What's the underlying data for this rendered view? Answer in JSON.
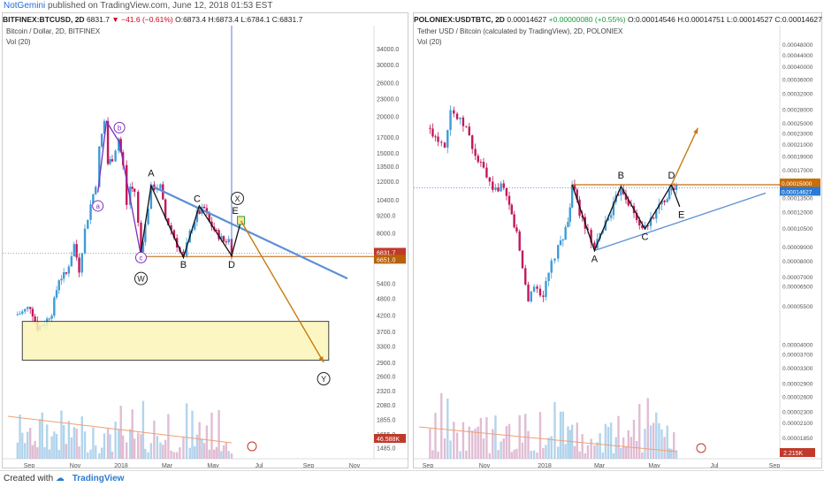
{
  "header": {
    "author": "NotGemini",
    "published": "published on TradingView.com, June 12, 2018 01:53 EST"
  },
  "footer": {
    "created_with": "Created with",
    "brand": "TradingView"
  },
  "chart_data": [
    {
      "type": "candlestick",
      "symbol": "BITFINEX:BTCUSD, 2D",
      "quote": {
        "last": "6831.7",
        "change": "−41.6 (−0.61%)",
        "open": "O:6873.4",
        "high": "H:6873.4",
        "low": "L:6784.1",
        "close": "C:6831.7"
      },
      "title": "Bitcoin / Dollar, 2D, BITFINEX",
      "volume_label": "Vol (20)",
      "y_scale": "log",
      "y_ticks": [
        "34000.0",
        "30000.0",
        "26000.0",
        "23000.0",
        "20000.0",
        "17000.0",
        "15000.0",
        "13500.0",
        "12000.0",
        "10400.0",
        "9200.0",
        "8000.0",
        "6800.0",
        "5400.0",
        "4800.0",
        "4200.0",
        "3700.0",
        "3300.0",
        "2900.0",
        "2600.0",
        "2320.0",
        "2080.0",
        "1855.0",
        "1655.0",
        "1485.0"
      ],
      "price_badges": [
        {
          "value": "6831.7",
          "color": "#c0392b"
        },
        {
          "value": "6651.0",
          "color": "#b8600a"
        }
      ],
      "volume_badge": {
        "value": "46.588K",
        "color": "#c0392b"
      },
      "x_ticks": [
        "Sep",
        "Nov",
        "2018",
        "Mar",
        "May",
        "Jul",
        "Sep",
        "Nov"
      ],
      "close_path": [
        {
          "date": "2017-08-15",
          "close": 4200
        },
        {
          "date": "2017-08-25",
          "close": 4300
        },
        {
          "date": "2017-09-05",
          "close": 4500
        },
        {
          "date": "2017-09-15",
          "close": 3800
        },
        {
          "date": "2017-09-25",
          "close": 3950
        },
        {
          "date": "2017-10-05",
          "close": 4300
        },
        {
          "date": "2017-10-15",
          "close": 5600
        },
        {
          "date": "2017-10-25",
          "close": 5800
        },
        {
          "date": "2017-11-05",
          "close": 7300
        },
        {
          "date": "2017-11-12",
          "close": 6000
        },
        {
          "date": "2017-11-20",
          "close": 8200
        },
        {
          "date": "2017-11-28",
          "close": 10000
        },
        {
          "date": "2017-12-05",
          "close": 11800
        },
        {
          "date": "2017-12-10",
          "close": 15500
        },
        {
          "date": "2017-12-17",
          "close": 19300
        },
        {
          "date": "2017-12-22",
          "close": 13800
        },
        {
          "date": "2017-12-28",
          "close": 14400
        },
        {
          "date": "2018-01-06",
          "close": 16800
        },
        {
          "date": "2018-01-12",
          "close": 13500
        },
        {
          "date": "2018-01-17",
          "close": 10000
        },
        {
          "date": "2018-01-22",
          "close": 11500
        },
        {
          "date": "2018-01-28",
          "close": 11100
        },
        {
          "date": "2018-02-02",
          "close": 8600
        },
        {
          "date": "2018-02-06",
          "close": 6900
        },
        {
          "date": "2018-02-12",
          "close": 8500
        },
        {
          "date": "2018-02-20",
          "close": 11400
        },
        {
          "date": "2018-03-05",
          "close": 11500
        },
        {
          "date": "2018-03-12",
          "close": 9000
        },
        {
          "date": "2018-03-20",
          "close": 8200
        },
        {
          "date": "2018-04-01",
          "close": 6900
        },
        {
          "date": "2018-04-06",
          "close": 6600
        },
        {
          "date": "2018-04-15",
          "close": 8000
        },
        {
          "date": "2018-04-25",
          "close": 9300
        },
        {
          "date": "2018-05-05",
          "close": 9700
        },
        {
          "date": "2018-05-12",
          "close": 8700
        },
        {
          "date": "2018-05-22",
          "close": 8000
        },
        {
          "date": "2018-06-01",
          "close": 7500
        },
        {
          "date": "2018-06-08",
          "close": 7600
        },
        {
          "date": "2018-06-12",
          "close": 6831.7
        }
      ],
      "annotations": {
        "labels": [
          {
            "text": "a",
            "date": "2017-12-08",
            "price": 9900,
            "style": "circle-purple"
          },
          {
            "text": "b",
            "date": "2018-01-07",
            "price": 18300,
            "style": "circle-purple"
          },
          {
            "text": "c",
            "date": "2018-02-06",
            "price": 6600,
            "style": "circle-purple"
          },
          {
            "text": "W",
            "date": "2018-02-06",
            "price": 5600,
            "style": "circle-black"
          },
          {
            "text": "A",
            "date": "2018-02-20",
            "price": 12500,
            "style": "plain"
          },
          {
            "text": "B",
            "date": "2018-04-06",
            "price": 6100,
            "style": "plain"
          },
          {
            "text": "C",
            "date": "2018-04-25",
            "price": 10200,
            "style": "plain"
          },
          {
            "text": "D",
            "date": "2018-06-12",
            "price": 6100,
            "style": "plain"
          },
          {
            "text": "E",
            "date": "2018-06-17",
            "price": 9300,
            "style": "plain"
          },
          {
            "text": "X",
            "date": "2018-06-20",
            "price": 10500,
            "style": "circle-black"
          },
          {
            "text": "Y",
            "date": "2018-10-18",
            "price": 2550,
            "style": "circle-black"
          }
        ],
        "triangle_path": [
          [
            "2018-02-06",
            6900
          ],
          [
            "2018-02-20",
            11600
          ],
          [
            "2018-04-06",
            6600
          ],
          [
            "2018-04-28",
            9900
          ],
          [
            "2018-06-12",
            6700
          ],
          [
            "2018-06-25",
            8800
          ]
        ],
        "abc_path": [
          [
            "2017-12-08",
            11000
          ],
          [
            "2017-12-20",
            19200
          ],
          [
            "2018-01-07",
            16300
          ],
          [
            "2018-02-06",
            6700
          ]
        ],
        "resistance_line": [
          [
            "2018-02-20",
            11600
          ],
          [
            "2018-11-20",
            5600
          ]
        ],
        "support_line": {
          "price": 6651.0
        },
        "vertical_line_date": "2018-06-12",
        "arrow": [
          [
            "2018-06-25",
            8800
          ],
          [
            "2018-10-18",
            2900
          ]
        ],
        "target_box": {
          "from": "2017-08-25",
          "to": "2018-10-25",
          "high": 4000,
          "low": 2950
        }
      }
    },
    {
      "type": "candlestick",
      "symbol": "POLONIEX:USDTBTC, 2D",
      "quote": {
        "last": "0.00014627",
        "change": "+0.00000080 (+0.55%)",
        "open": "O:0.00014546",
        "high": "H:0.00014751",
        "low": "L:0.00014527",
        "close": "C:0.00014627"
      },
      "title": "Tether USD / Bitcoin (calculated by TradingView), 2D, POLONIEX",
      "volume_label": "Vol (20)",
      "y_scale": "log",
      "y_ticks": [
        "0.00048000",
        "0.00044000",
        "0.00040000",
        "0.00036000",
        "0.00032000",
        "0.00028000",
        "0.00025000",
        "0.00023000",
        "0.00021000",
        "0.00019000",
        "0.00017000",
        "0.00015000",
        "0.00013500",
        "0.00012000",
        "0.00010500",
        "0.00009000",
        "0.00008000",
        "0.00007000",
        "0.00006500",
        "0.00005500",
        "0.00004000",
        "0.00003700",
        "0.00003300",
        "0.00002900",
        "0.00002600",
        "0.00002300",
        "0.00002100",
        "0.00001850"
      ],
      "price_badges": [
        {
          "value": "0.00015000",
          "color": "#c86e0a"
        },
        {
          "value": "0.00014627",
          "color": "#2a7bd3"
        }
      ],
      "volume_badge": {
        "value": "2.215K",
        "color": "#c0392b"
      },
      "x_ticks": [
        "Sep",
        "Nov",
        "2018",
        "Mar",
        "May",
        "Jul",
        "Sep"
      ],
      "close_path": [
        {
          "date": "2017-08-15",
          "close": 0.00024
        },
        {
          "date": "2017-08-28",
          "close": 0.00022
        },
        {
          "date": "2017-09-05",
          "close": 0.00021
        },
        {
          "date": "2017-09-12",
          "close": 0.00028
        },
        {
          "date": "2017-09-20",
          "close": 0.00026
        },
        {
          "date": "2017-10-01",
          "close": 0.00024
        },
        {
          "date": "2017-10-12",
          "close": 0.00019
        },
        {
          "date": "2017-10-22",
          "close": 0.00017
        },
        {
          "date": "2017-11-02",
          "close": 0.00014
        },
        {
          "date": "2017-11-12",
          "close": 0.00015
        },
        {
          "date": "2017-11-22",
          "close": 0.000125
        },
        {
          "date": "2017-12-01",
          "close": 0.0001
        },
        {
          "date": "2017-12-08",
          "close": 7.5e-05
        },
        {
          "date": "2017-12-15",
          "close": 5.8e-05
        },
        {
          "date": "2017-12-22",
          "close": 6.5e-05
        },
        {
          "date": "2018-01-02",
          "close": 6e-05
        },
        {
          "date": "2018-01-12",
          "close": 7.8e-05
        },
        {
          "date": "2018-01-20",
          "close": 8.8e-05
        },
        {
          "date": "2018-02-01",
          "close": 0.00011
        },
        {
          "date": "2018-02-06",
          "close": 0.00015
        },
        {
          "date": "2018-02-15",
          "close": 0.00012
        },
        {
          "date": "2018-02-25",
          "close": 0.0001
        },
        {
          "date": "2018-03-05",
          "close": 8.7e-05
        },
        {
          "date": "2018-03-15",
          "close": 0.000105
        },
        {
          "date": "2018-03-25",
          "close": 0.00012
        },
        {
          "date": "2018-04-06",
          "close": 0.000148
        },
        {
          "date": "2018-04-15",
          "close": 0.00013
        },
        {
          "date": "2018-04-25",
          "close": 0.000112
        },
        {
          "date": "2018-05-05",
          "close": 0.000104
        },
        {
          "date": "2018-05-12",
          "close": 0.000112
        },
        {
          "date": "2018-05-22",
          "close": 0.000125
        },
        {
          "date": "2018-06-01",
          "close": 0.000138
        },
        {
          "date": "2018-06-06",
          "close": 0.00015
        },
        {
          "date": "2018-06-12",
          "close": 0.00014627
        }
      ],
      "annotations": {
        "labels": [
          {
            "text": "A",
            "date": "2018-03-05",
            "price": 7.9e-05,
            "style": "plain"
          },
          {
            "text": "B",
            "date": "2018-04-06",
            "price": 0.000158,
            "style": "plain"
          },
          {
            "text": "C",
            "date": "2018-05-05",
            "price": 9.5e-05,
            "style": "plain"
          },
          {
            "text": "D",
            "date": "2018-06-06",
            "price": 0.000158,
            "style": "plain"
          },
          {
            "text": "E",
            "date": "2018-06-18",
            "price": 0.000114,
            "style": "plain"
          }
        ],
        "triangle_path": [
          [
            "2018-02-06",
            0.00015
          ],
          [
            "2018-03-05",
            8.7e-05
          ],
          [
            "2018-04-06",
            0.000148
          ],
          [
            "2018-05-05",
            0.000104
          ],
          [
            "2018-06-06",
            0.00015
          ],
          [
            "2018-06-16",
            0.000125
          ]
        ],
        "support_line": [
          [
            "2018-03-05",
            8.7e-05
          ],
          [
            "2018-09-28",
            0.00014
          ]
        ],
        "resistance_line": {
          "price": 0.00015
        },
        "arrow": [
          [
            "2018-06-06",
            0.00015
          ],
          [
            "2018-07-08",
            0.00024
          ]
        ]
      }
    }
  ]
}
